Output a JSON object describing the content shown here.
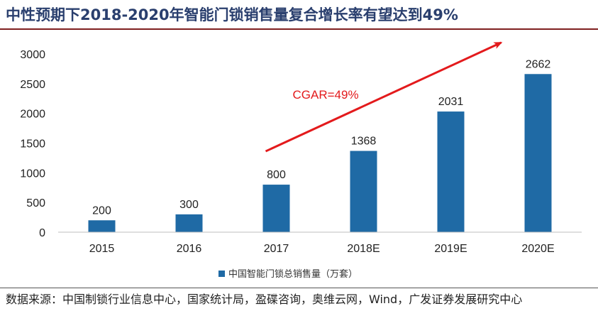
{
  "title": "中性预期下2018-2020年智能门锁销售量复合增长率有望达到49%",
  "source": "数据来源：中国制锁行业信息中心，国家统计局，盈碟咨询，奥维云网，Wind，广发证券发展研究中心",
  "colors": {
    "bar": "#1f6aa5",
    "title": "#2a3f6e",
    "arrow": "#e31a1c",
    "rule": "#7f1f1f"
  },
  "chart_data": {
    "type": "bar",
    "categories": [
      "2015",
      "2016",
      "2017",
      "2018E",
      "2019E",
      "2020E"
    ],
    "series": [
      {
        "name": "中国智能门锁总销售量（万套）",
        "values": [
          200,
          300,
          800,
          1368,
          2031,
          2662
        ]
      }
    ],
    "data_labels": [
      "200",
      "300",
      "800",
      "1368",
      "2031",
      "2662"
    ],
    "ylim": [
      0,
      3000
    ],
    "yticks": [
      0,
      500,
      1000,
      1500,
      2000,
      2500,
      3000
    ],
    "legend_position": "bottom",
    "annotation": {
      "text": "CGAR=49%",
      "from_category": "2017",
      "to_category": "2020E"
    }
  }
}
